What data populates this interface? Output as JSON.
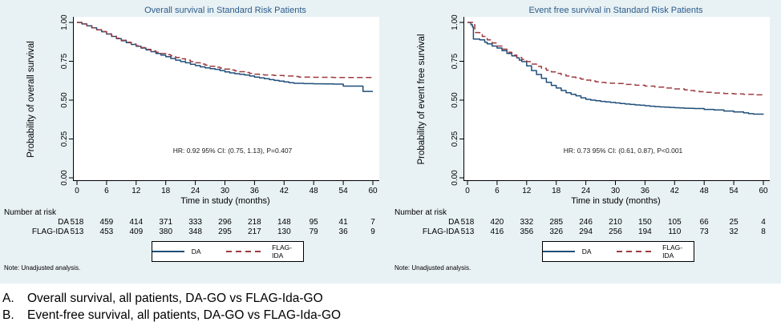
{
  "colors": {
    "panel_bg": "#e8f1f4",
    "title": "#2d5c8a",
    "da": "#1f4e79",
    "flag_ida": "#9d3d41",
    "axis": "#000000",
    "annotation": "#1a1a1a"
  },
  "captions": [
    {
      "marker": "A.",
      "text": "Overall survival, all patients, DA-GO vs FLAG-Ida-GO"
    },
    {
      "marker": "B.",
      "text": "Event-free survival, all patients, DA-GO vs FLAG-Ida-GO"
    }
  ],
  "chart_data": [
    {
      "type": "line",
      "subtype": "kaplan-meier-step",
      "title": "Overall survival in Standard Risk Patients",
      "ylabel": "Probability of overall survival",
      "xlabel": "Time in study (months)",
      "annotation": "HR: 0.92 95% CI: (0.75, 1.13), P=0.407",
      "note": "Note: Unadjusted analysis.",
      "ylim": [
        0,
        1
      ],
      "xlim": [
        0,
        60
      ],
      "x_ticks": [
        0,
        6,
        12,
        18,
        24,
        30,
        36,
        42,
        48,
        54,
        60
      ],
      "y_tick_labels": [
        "0.00",
        "0.25",
        "0.50",
        "0.75",
        "1.00"
      ],
      "legend": [
        {
          "label": "DA",
          "style": "solid"
        },
        {
          "label": "FLAG-IDA",
          "style": "dashed"
        }
      ],
      "number_at_risk": {
        "title": "Number at risk",
        "rows": [
          {
            "label": "DA",
            "values": [
              518,
              459,
              414,
              371,
              333,
              296,
              218,
              148,
              95,
              41,
              7
            ]
          },
          {
            "label": "FLAG-IDA",
            "values": [
              513,
              453,
              409,
              380,
              348,
              295,
              217,
              130,
              79,
              36,
              9
            ]
          }
        ]
      },
      "series": [
        {
          "name": "DA",
          "dashed": false,
          "points": [
            [
              0,
              1.0
            ],
            [
              1,
              0.99
            ],
            [
              2,
              0.978
            ],
            [
              3,
              0.965
            ],
            [
              4,
              0.952
            ],
            [
              5,
              0.94
            ],
            [
              6,
              0.925
            ],
            [
              7,
              0.91
            ],
            [
              8,
              0.896
            ],
            [
              9,
              0.882
            ],
            [
              10,
              0.87
            ],
            [
              11,
              0.858
            ],
            [
              12,
              0.847
            ],
            [
              13,
              0.835
            ],
            [
              14,
              0.823
            ],
            [
              15,
              0.812
            ],
            [
              16,
              0.8
            ],
            [
              17,
              0.79
            ],
            [
              18,
              0.78
            ],
            [
              19,
              0.768
            ],
            [
              20,
              0.757
            ],
            [
              21,
              0.748
            ],
            [
              22,
              0.74
            ],
            [
              23,
              0.731
            ],
            [
              24,
              0.722
            ],
            [
              25,
              0.714
            ],
            [
              26,
              0.707
            ],
            [
              27,
              0.702
            ],
            [
              28,
              0.698
            ],
            [
              29,
              0.69
            ],
            [
              30,
              0.682
            ],
            [
              31,
              0.675
            ],
            [
              32,
              0.67
            ],
            [
              33,
              0.666
            ],
            [
              34,
              0.662
            ],
            [
              35,
              0.655
            ],
            [
              36,
              0.648
            ],
            [
              37,
              0.643
            ],
            [
              38,
              0.638
            ],
            [
              39,
              0.632
            ],
            [
              40,
              0.627
            ],
            [
              41,
              0.622
            ],
            [
              42,
              0.617
            ],
            [
              43,
              0.612
            ],
            [
              44,
              0.608
            ],
            [
              46,
              0.606
            ],
            [
              48,
              0.605
            ],
            [
              50,
              0.604
            ],
            [
              52,
              0.603
            ],
            [
              54,
              0.59
            ],
            [
              58,
              0.556
            ],
            [
              60,
              0.556
            ]
          ]
        },
        {
          "name": "FLAG-IDA",
          "dashed": true,
          "points": [
            [
              0,
              1.0
            ],
            [
              1,
              0.99
            ],
            [
              2,
              0.979
            ],
            [
              3,
              0.966
            ],
            [
              4,
              0.953
            ],
            [
              5,
              0.941
            ],
            [
              6,
              0.927
            ],
            [
              7,
              0.912
            ],
            [
              8,
              0.898
            ],
            [
              9,
              0.885
            ],
            [
              10,
              0.872
            ],
            [
              11,
              0.861
            ],
            [
              12,
              0.85
            ],
            [
              13,
              0.838
            ],
            [
              14,
              0.827
            ],
            [
              15,
              0.817
            ],
            [
              16,
              0.808
            ],
            [
              17,
              0.8
            ],
            [
              18,
              0.793
            ],
            [
              19,
              0.784
            ],
            [
              20,
              0.775
            ],
            [
              21,
              0.766
            ],
            [
              22,
              0.757
            ],
            [
              23,
              0.748
            ],
            [
              24,
              0.74
            ],
            [
              25,
              0.732
            ],
            [
              26,
              0.725
            ],
            [
              27,
              0.718
            ],
            [
              28,
              0.712
            ],
            [
              29,
              0.706
            ],
            [
              30,
              0.7
            ],
            [
              31,
              0.694
            ],
            [
              32,
              0.688
            ],
            [
              33,
              0.683
            ],
            [
              34,
              0.678
            ],
            [
              35,
              0.672
            ],
            [
              36,
              0.667
            ],
            [
              37,
              0.664
            ],
            [
              38,
              0.662
            ],
            [
              40,
              0.658
            ],
            [
              42,
              0.655
            ],
            [
              44,
              0.652
            ],
            [
              45,
              0.648
            ],
            [
              48,
              0.647
            ],
            [
              52,
              0.646
            ],
            [
              56,
              0.646
            ],
            [
              60,
              0.645
            ]
          ]
        }
      ]
    },
    {
      "type": "line",
      "subtype": "kaplan-meier-step",
      "title": "Event free survival in Standard Risk Patients",
      "ylabel": "Probability of event free survival",
      "xlabel": "Time in study (months)",
      "annotation": "HR: 0.73 95% CI: (0.61, 0.87), P<0.001",
      "note": "Note: Unadjusted analysis.",
      "ylim": [
        0,
        1
      ],
      "xlim": [
        0,
        60
      ],
      "x_ticks": [
        0,
        6,
        12,
        18,
        24,
        30,
        36,
        42,
        48,
        54,
        60
      ],
      "y_tick_labels": [
        "0.00",
        "0.25",
        "0.50",
        "0.75",
        "1.00"
      ],
      "legend": [
        {
          "label": "DA",
          "style": "solid"
        },
        {
          "label": "FLAG-IDA",
          "style": "dashed"
        }
      ],
      "number_at_risk": {
        "title": "Number at risk",
        "rows": [
          {
            "label": "DA",
            "values": [
              518,
              420,
              332,
              285,
              246,
              210,
              150,
              105,
              66,
              25,
              4
            ]
          },
          {
            "label": "FLAG-IDA",
            "values": [
              513,
              416,
              356,
              326,
              294,
              256,
              194,
              110,
              73,
              32,
              8
            ]
          }
        ]
      },
      "series": [
        {
          "name": "DA",
          "dashed": false,
          "points": [
            [
              0,
              1.0
            ],
            [
              0.7,
              0.985
            ],
            [
              1,
              0.97
            ],
            [
              1.2,
              0.893
            ],
            [
              2.5,
              0.888
            ],
            [
              3.5,
              0.872
            ],
            [
              4,
              0.862
            ],
            [
              5,
              0.848
            ],
            [
              6,
              0.835
            ],
            [
              7,
              0.818
            ],
            [
              8,
              0.8
            ],
            [
              9,
              0.785
            ],
            [
              10,
              0.772
            ],
            [
              10.5,
              0.757
            ],
            [
              11,
              0.748
            ],
            [
              12,
              0.72
            ],
            [
              13,
              0.69
            ],
            [
              14,
              0.665
            ],
            [
              15,
              0.64
            ],
            [
              16,
              0.615
            ],
            [
              17,
              0.595
            ],
            [
              18,
              0.578
            ],
            [
              19,
              0.562
            ],
            [
              20,
              0.548
            ],
            [
              21,
              0.537
            ],
            [
              22,
              0.528
            ],
            [
              23,
              0.515
            ],
            [
              24,
              0.505
            ],
            [
              25,
              0.5
            ],
            [
              26,
              0.496
            ],
            [
              27,
              0.492
            ],
            [
              28,
              0.488
            ],
            [
              29,
              0.485
            ],
            [
              30,
              0.482
            ],
            [
              31,
              0.478
            ],
            [
              32,
              0.475
            ],
            [
              33,
              0.472
            ],
            [
              34,
              0.469
            ],
            [
              35,
              0.467
            ],
            [
              36,
              0.464
            ],
            [
              37,
              0.461
            ],
            [
              38,
              0.458
            ],
            [
              39,
              0.456
            ],
            [
              40,
              0.455
            ],
            [
              41,
              0.453
            ],
            [
              42,
              0.451
            ],
            [
              43,
              0.45
            ],
            [
              44,
              0.448
            ],
            [
              45,
              0.447
            ],
            [
              46,
              0.446
            ],
            [
              48,
              0.44
            ],
            [
              50,
              0.437
            ],
            [
              52,
              0.43
            ],
            [
              54,
              0.424
            ],
            [
              56,
              0.418
            ],
            [
              57,
              0.413
            ],
            [
              58,
              0.41
            ],
            [
              60,
              0.408
            ]
          ]
        },
        {
          "name": "FLAG-IDA",
          "dashed": true,
          "points": [
            [
              0,
              1.0
            ],
            [
              1.3,
              0.985
            ],
            [
              1.5,
              0.935
            ],
            [
              2.5,
              0.922
            ],
            [
              3,
              0.91
            ],
            [
              4,
              0.888
            ],
            [
              5,
              0.868
            ],
            [
              6,
              0.848
            ],
            [
              7,
              0.828
            ],
            [
              8,
              0.808
            ],
            [
              9,
              0.79
            ],
            [
              10,
              0.775
            ],
            [
              11,
              0.762
            ],
            [
              12,
              0.748
            ],
            [
              13,
              0.732
            ],
            [
              14,
              0.717
            ],
            [
              15,
              0.705
            ],
            [
              16,
              0.693
            ],
            [
              17,
              0.682
            ],
            [
              18,
              0.672
            ],
            [
              19,
              0.663
            ],
            [
              20,
              0.655
            ],
            [
              21,
              0.648
            ],
            [
              22,
              0.642
            ],
            [
              23,
              0.635
            ],
            [
              24,
              0.629
            ],
            [
              25,
              0.623
            ],
            [
              26,
              0.618
            ],
            [
              27,
              0.614
            ],
            [
              28,
              0.611
            ],
            [
              29,
              0.609
            ],
            [
              30,
              0.607
            ],
            [
              32,
              0.601
            ],
            [
              34,
              0.596
            ],
            [
              36,
              0.59
            ],
            [
              38,
              0.584
            ],
            [
              40,
              0.578
            ],
            [
              42,
              0.572
            ],
            [
              44,
              0.566
            ],
            [
              45,
              0.562
            ],
            [
              46,
              0.558
            ],
            [
              47,
              0.554
            ],
            [
              48,
              0.55
            ],
            [
              50,
              0.546
            ],
            [
              52,
              0.543
            ],
            [
              54,
              0.54
            ],
            [
              56,
              0.537
            ],
            [
              58,
              0.534
            ],
            [
              60,
              0.532
            ]
          ]
        }
      ]
    }
  ]
}
